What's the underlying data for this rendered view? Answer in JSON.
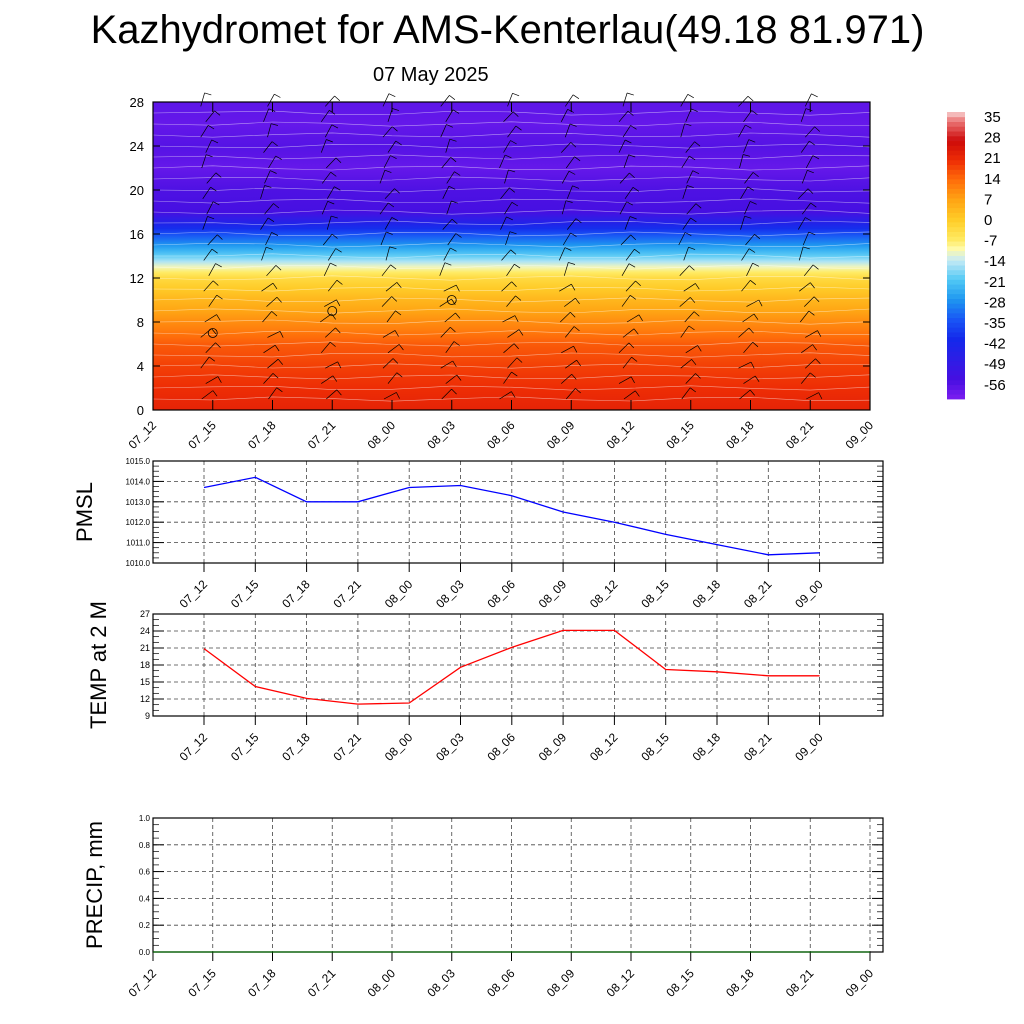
{
  "title": "Kazhydromet for AMS-Kenterlau(49.18 81.971)",
  "date": "07 May 2025",
  "chart_data": [
    {
      "type": "heatmap",
      "name": "vertical temperature cross-section with wind barbs",
      "x_labels": [
        "07_12",
        "07_15",
        "07_18",
        "07_21",
        "08_00",
        "08_03",
        "08_06",
        "08_09",
        "08_12",
        "08_15",
        "08_18",
        "08_21",
        "09_00"
      ],
      "y_ticks": [
        0,
        4,
        8,
        12,
        16,
        20,
        24,
        28
      ],
      "ylim": [
        0,
        28
      ],
      "colorbar": {
        "labels": [
          "35",
          "28",
          "21",
          "14",
          "7",
          "0",
          "-7",
          "-14",
          "-21",
          "-28",
          "-35",
          "-42",
          "-49",
          "-56"
        ],
        "range": [
          -63,
          38
        ]
      },
      "temperature_profile_by_level": {
        "levels": [
          0,
          2,
          4,
          6,
          8,
          10,
          12,
          13,
          14,
          16,
          17,
          18,
          20,
          22,
          24,
          26,
          28
        ],
        "values": [
          23,
          21,
          19,
          16,
          10,
          4,
          -3,
          -11,
          -20,
          -36,
          -46,
          -56,
          -57,
          -60,
          -58,
          -60,
          -59
        ]
      },
      "markers": [
        {
          "x": "07_15",
          "y": 7
        },
        {
          "x": "07_21",
          "y": 9
        },
        {
          "x": "08_03",
          "y": 10
        }
      ]
    },
    {
      "type": "line",
      "ylabel": "PMSL",
      "x_labels": [
        "07_12",
        "07_15",
        "07_18",
        "07_21",
        "08_00",
        "08_03",
        "08_06",
        "08_09",
        "08_12",
        "08_15",
        "08_18",
        "08_21",
        "09_00"
      ],
      "y_ticks": [
        "1010.0",
        "1011.0",
        "1012.0",
        "1013.0",
        "1014.0",
        "1015.0"
      ],
      "ylim": [
        1010,
        1015
      ],
      "values": [
        1013.7,
        1014.2,
        1013.0,
        1013.0,
        1013.7,
        1013.8,
        1013.3,
        1012.5,
        1012.0,
        1011.4,
        1010.9,
        1010.4,
        1010.5
      ],
      "color": "#0000ff"
    },
    {
      "type": "line",
      "ylabel": "TEMP at 2 M",
      "x_labels": [
        "07_12",
        "07_15",
        "07_18",
        "07_21",
        "08_00",
        "08_03",
        "08_06",
        "08_09",
        "08_12",
        "08_15",
        "08_18",
        "08_21",
        "09_00"
      ],
      "y_ticks": [
        "9",
        "12",
        "15",
        "18",
        "21",
        "24",
        "27"
      ],
      "ylim": [
        9,
        27
      ],
      "values": [
        20.9,
        14.2,
        12.1,
        11.1,
        11.3,
        17.6,
        21.1,
        24.1,
        24.1,
        17.2,
        16.8,
        16.1,
        16.1
      ],
      "color": "#ff0000"
    },
    {
      "type": "line",
      "ylabel": "PRECIP, mm",
      "x_labels": [
        "07_12",
        "07_15",
        "07_18",
        "07_21",
        "08_00",
        "08_03",
        "08_06",
        "08_09",
        "08_12",
        "08_15",
        "08_18",
        "08_21",
        "09_00"
      ],
      "y_ticks": [
        "0.0",
        "0.2",
        "0.4",
        "0.6",
        "0.8",
        "1.0"
      ],
      "ylim": [
        0,
        1
      ],
      "values": [
        0,
        0,
        0,
        0,
        0,
        0,
        0,
        0,
        0,
        0,
        0,
        0,
        0
      ],
      "color": "#006400"
    }
  ]
}
